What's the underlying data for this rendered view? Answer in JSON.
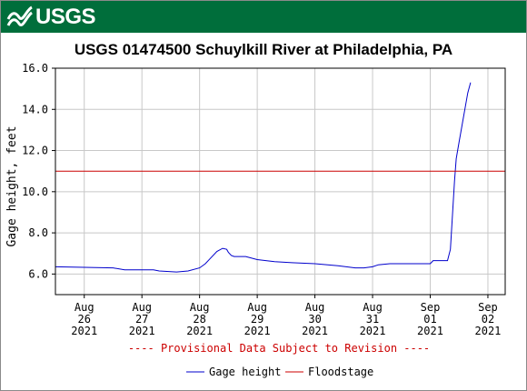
{
  "banner": {
    "logo_text": "USGS",
    "color": "#006e3b"
  },
  "chart_data": {
    "type": "line",
    "title": "USGS 01474500 Schuylkill River at Philadelphia, PA",
    "ylabel": "Gage height, feet",
    "xlabel": "",
    "ylim": [
      5.0,
      16.0
    ],
    "yticks": [
      {
        "value": 6,
        "label": "6.0"
      },
      {
        "value": 8,
        "label": "8.0"
      },
      {
        "value": 10,
        "label": "10.0"
      },
      {
        "value": 12,
        "label": "12.0"
      },
      {
        "value": 14,
        "label": "14.0"
      },
      {
        "value": 16,
        "label": "16.0"
      }
    ],
    "xlim": [
      -0.5,
      7.3
    ],
    "xticks": [
      {
        "value": 0,
        "line1": "Aug",
        "line2": "26",
        "line3": "2021"
      },
      {
        "value": 1,
        "line1": "Aug",
        "line2": "27",
        "line3": "2021"
      },
      {
        "value": 2,
        "line1": "Aug",
        "line2": "28",
        "line3": "2021"
      },
      {
        "value": 3,
        "line1": "Aug",
        "line2": "29",
        "line3": "2021"
      },
      {
        "value": 4,
        "line1": "Aug",
        "line2": "30",
        "line3": "2021"
      },
      {
        "value": 5,
        "line1": "Aug",
        "line2": "31",
        "line3": "2021"
      },
      {
        "value": 6,
        "line1": "Sep",
        "line2": "01",
        "line3": "2021"
      },
      {
        "value": 7,
        "line1": "Sep",
        "line2": "02",
        "line3": "2021"
      }
    ],
    "grid": true,
    "series": [
      {
        "name": "Gage height",
        "color": "#0000cc",
        "x": [
          -0.5,
          0.5,
          0.7,
          1.2,
          1.3,
          1.6,
          1.8,
          2.0,
          2.1,
          2.2,
          2.3,
          2.4,
          2.47,
          2.5,
          2.55,
          2.6,
          2.8,
          3.0,
          3.3,
          3.6,
          4.0,
          4.4,
          4.7,
          4.85,
          5.0,
          5.1,
          5.3,
          6.0,
          6.05,
          6.3,
          6.35,
          6.42,
          6.45,
          6.5,
          6.55,
          6.6,
          6.65,
          6.7
        ],
        "y": [
          6.35,
          6.3,
          6.2,
          6.2,
          6.15,
          6.1,
          6.15,
          6.3,
          6.5,
          6.8,
          7.1,
          7.25,
          7.2,
          7.05,
          6.9,
          6.85,
          6.85,
          6.7,
          6.6,
          6.55,
          6.5,
          6.4,
          6.3,
          6.3,
          6.35,
          6.45,
          6.5,
          6.5,
          6.65,
          6.65,
          7.2,
          10.5,
          11.6,
          12.4,
          13.2,
          14.0,
          14.8,
          15.3
        ]
      },
      {
        "name": "Floodstage",
        "color": "#cc0000",
        "x": [
          -0.5,
          7.3
        ],
        "y": [
          11.0,
          11.0
        ]
      }
    ],
    "annotation": "---- Provisional Data Subject to Revision ----",
    "legend_position": "bottom"
  }
}
